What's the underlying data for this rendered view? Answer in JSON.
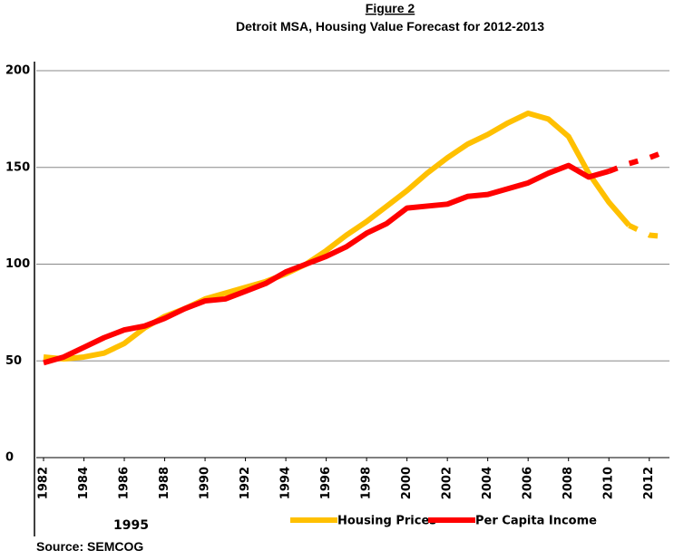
{
  "chart_data": {
    "type": "line",
    "title": "Figure 2",
    "subtitle": "Detroit MSA, Housing Value Forecast for 2012-2013",
    "annotation": "1995",
    "source": "Source: SEMCOG",
    "x": [
      1982,
      1983,
      1984,
      1985,
      1986,
      1987,
      1988,
      1989,
      1990,
      1991,
      1992,
      1993,
      1994,
      1995,
      1996,
      1997,
      1998,
      1999,
      2000,
      2001,
      2002,
      2003,
      2004,
      2005,
      2006,
      2007,
      2008,
      2009,
      2010,
      2011,
      2012,
      2013
    ],
    "xlim": [
      1982,
      2013
    ],
    "xticks": [
      1982,
      1984,
      1986,
      1988,
      1990,
      1992,
      1994,
      1996,
      1998,
      2000,
      2002,
      2004,
      2006,
      2008,
      2010,
      2012
    ],
    "ylim": [
      0,
      200
    ],
    "yticks": [
      0,
      50,
      100,
      150,
      200
    ],
    "grid": true,
    "legend": "bottom-right",
    "series": [
      {
        "name": "Housing Prices",
        "color": "#ffc000",
        "dash_from": 2011,
        "values": [
          52,
          51,
          52,
          54,
          59,
          67,
          73,
          77,
          82,
          85,
          88,
          91,
          95,
          100,
          107,
          115,
          122,
          130,
          138,
          147,
          155,
          162,
          167,
          173,
          178,
          175,
          166,
          147,
          132,
          120,
          115,
          114
        ]
      },
      {
        "name": "Per Capita Income",
        "color": "#ff0000",
        "dash_from": 2010,
        "values": [
          49,
          52,
          57,
          62,
          66,
          68,
          72,
          77,
          81,
          82,
          86,
          90,
          96,
          100,
          104,
          109,
          116,
          121,
          129,
          130,
          131,
          135,
          136,
          139,
          142,
          147,
          151,
          145,
          148,
          152,
          155,
          159
        ]
      }
    ]
  }
}
